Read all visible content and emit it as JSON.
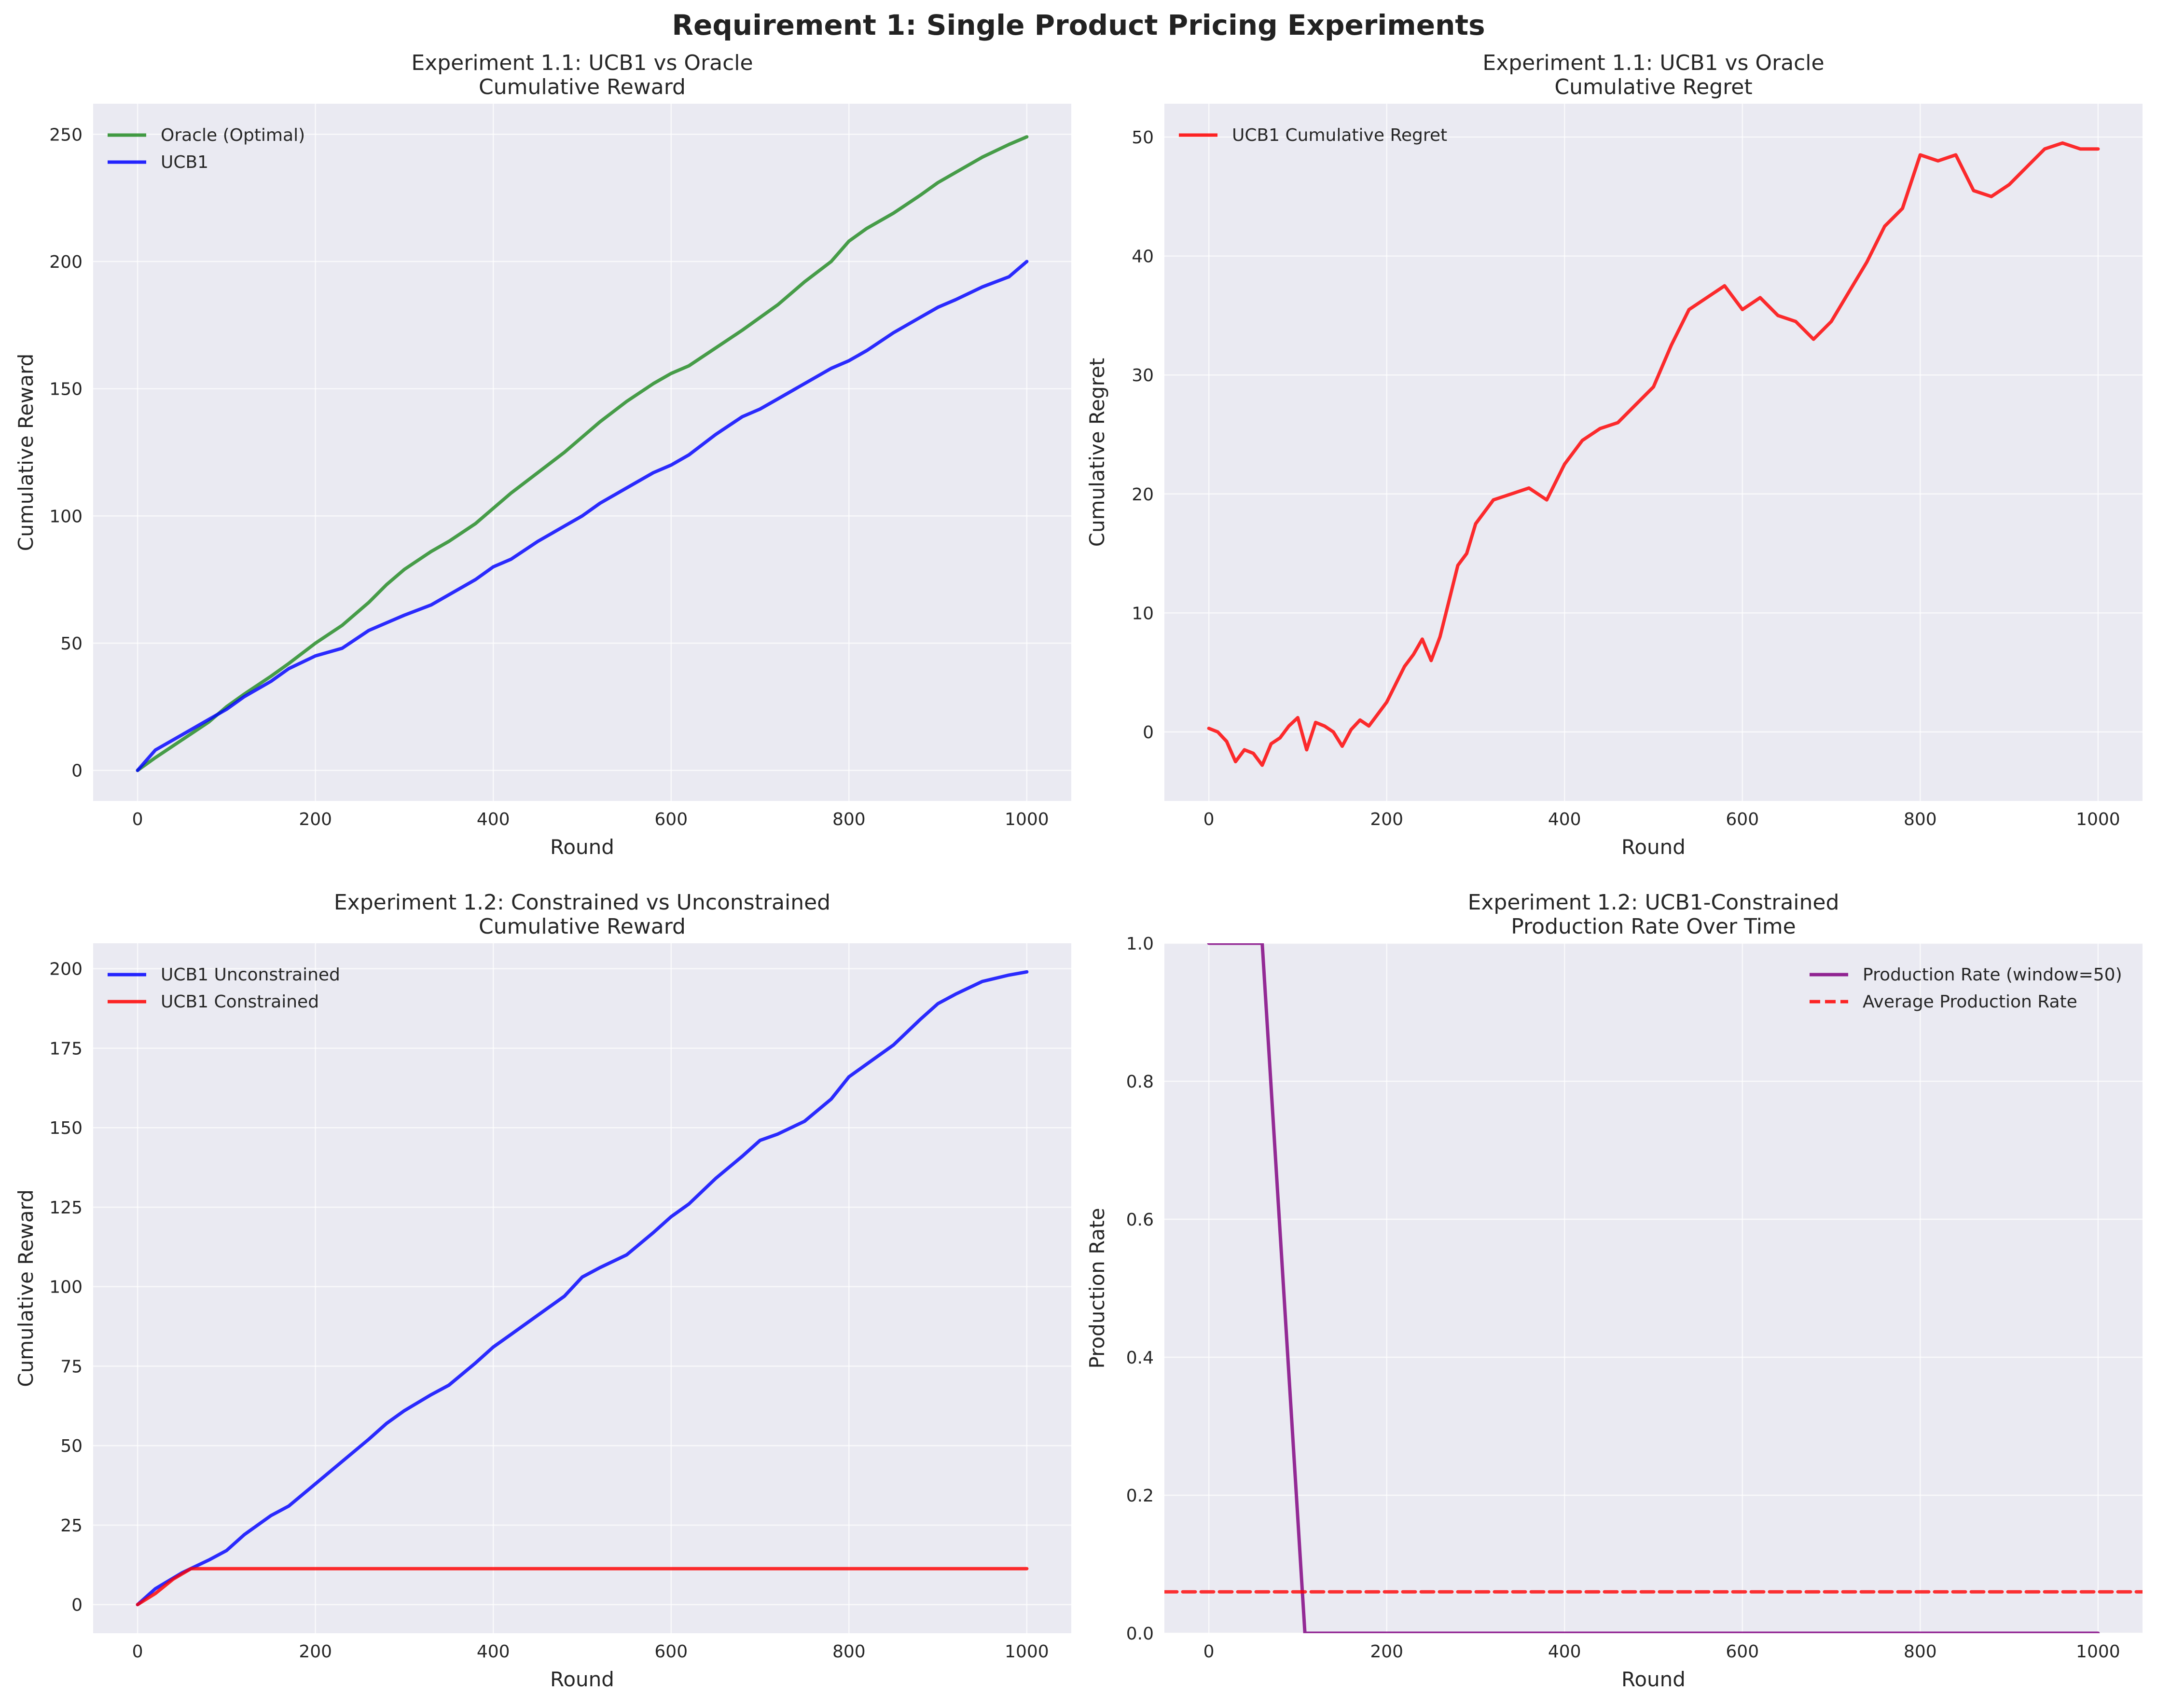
{
  "figure": {
    "suptitle": "Requirement 1: Single Product Pricing Experiments"
  },
  "chart_data": [
    {
      "id": "p1",
      "type": "line",
      "title": "Experiment 1.1: UCB1 vs Oracle",
      "subtitle": "Cumulative Reward",
      "xlabel": "Round",
      "ylabel": "Cumulative Reward",
      "xlim": [
        -50,
        1050
      ],
      "ylim": [
        -12,
        262
      ],
      "xticks": [
        0,
        200,
        400,
        600,
        800,
        1000
      ],
      "yticks": [
        0,
        50,
        100,
        150,
        200,
        250
      ],
      "grid": true,
      "legend": "top-left",
      "series": [
        {
          "name": "Oracle (Optimal)",
          "color": "#228B22",
          "dash": "solid",
          "x": [
            0,
            20,
            50,
            80,
            100,
            120,
            150,
            170,
            200,
            230,
            260,
            280,
            300,
            330,
            350,
            380,
            400,
            420,
            450,
            480,
            500,
            520,
            550,
            580,
            600,
            620,
            650,
            680,
            700,
            720,
            750,
            780,
            800,
            820,
            850,
            880,
            900,
            920,
            950,
            980,
            1000
          ],
          "y": [
            0,
            5,
            12,
            19,
            25,
            30,
            37,
            42,
            50,
            57,
            66,
            73,
            79,
            86,
            90,
            97,
            103,
            109,
            117,
            125,
            131,
            137,
            145,
            152,
            156,
            159,
            166,
            173,
            178,
            183,
            192,
            200,
            208,
            213,
            219,
            226,
            231,
            235,
            241,
            246,
            249
          ]
        },
        {
          "name": "UCB1",
          "color": "#0000FF",
          "dash": "solid",
          "x": [
            0,
            20,
            50,
            80,
            100,
            120,
            150,
            170,
            200,
            230,
            260,
            280,
            300,
            330,
            350,
            380,
            400,
            420,
            450,
            480,
            500,
            520,
            550,
            580,
            600,
            620,
            650,
            680,
            700,
            720,
            750,
            780,
            800,
            820,
            850,
            880,
            900,
            920,
            950,
            980,
            1000
          ],
          "y": [
            0,
            8,
            14,
            20,
            24,
            29,
            35,
            40,
            45,
            48,
            55,
            58,
            61,
            65,
            69,
            75,
            80,
            83,
            90,
            96,
            100,
            105,
            111,
            117,
            120,
            124,
            132,
            139,
            142,
            146,
            152,
            158,
            161,
            165,
            172,
            178,
            182,
            185,
            190,
            194,
            200
          ]
        }
      ]
    },
    {
      "id": "p2",
      "type": "line",
      "title": "Experiment 1.1: UCB1 vs Oracle",
      "subtitle": "Cumulative Regret",
      "xlabel": "Round",
      "ylabel": "Cumulative Regret",
      "xlim": [
        -50,
        1050
      ],
      "ylim": [
        -5.8,
        52.8
      ],
      "xticks": [
        0,
        200,
        400,
        600,
        800,
        1000
      ],
      "yticks": [
        0,
        10,
        20,
        30,
        40,
        50
      ],
      "grid": true,
      "legend": "top-left",
      "series": [
        {
          "name": "UCB1 Cumulative Regret",
          "color": "#FF0000",
          "dash": "solid",
          "x": [
            0,
            10,
            20,
            30,
            40,
            50,
            60,
            70,
            80,
            90,
            100,
            110,
            120,
            130,
            140,
            150,
            160,
            170,
            180,
            190,
            200,
            210,
            220,
            230,
            240,
            250,
            260,
            270,
            280,
            290,
            300,
            320,
            340,
            360,
            380,
            400,
            420,
            440,
            460,
            480,
            500,
            520,
            540,
            560,
            580,
            600,
            620,
            640,
            660,
            680,
            700,
            720,
            740,
            760,
            780,
            800,
            820,
            840,
            860,
            880,
            900,
            920,
            940,
            960,
            980,
            1000
          ],
          "y": [
            0.3,
            0.0,
            -0.8,
            -2.5,
            -1.5,
            -1.8,
            -2.8,
            -1.0,
            -0.5,
            0.5,
            1.2,
            -1.5,
            0.8,
            0.5,
            0.0,
            -1.2,
            0.2,
            1.0,
            0.5,
            1.5,
            2.5,
            4.0,
            5.5,
            6.5,
            7.8,
            6.0,
            8.0,
            11.0,
            14.0,
            15.0,
            17.5,
            19.5,
            20.0,
            20.5,
            19.5,
            22.5,
            24.5,
            25.5,
            26.0,
            27.5,
            29.0,
            32.5,
            35.5,
            36.5,
            37.5,
            35.5,
            36.5,
            35.0,
            34.5,
            33.0,
            34.5,
            37.0,
            39.5,
            42.5,
            44.0,
            48.5,
            48.0,
            48.5,
            45.5,
            45.0,
            46.0,
            47.5,
            49.0,
            49.5,
            49.0,
            49.0
          ]
        }
      ]
    },
    {
      "id": "p3",
      "type": "line",
      "title": "Experiment 1.2: Constrained vs Unconstrained",
      "subtitle": "Cumulative Reward",
      "xlabel": "Round",
      "ylabel": "Cumulative Reward",
      "xlim": [
        -50,
        1050
      ],
      "ylim": [
        -9,
        208
      ],
      "xticks": [
        0,
        200,
        400,
        600,
        800,
        1000
      ],
      "yticks": [
        0,
        25,
        50,
        75,
        100,
        125,
        150,
        175,
        200
      ],
      "grid": true,
      "legend": "top-left",
      "series": [
        {
          "name": "UCB1 Unconstrained",
          "color": "#0000FF",
          "dash": "solid",
          "x": [
            0,
            20,
            50,
            80,
            100,
            120,
            150,
            170,
            200,
            230,
            260,
            280,
            300,
            330,
            350,
            380,
            400,
            420,
            450,
            480,
            500,
            520,
            550,
            580,
            600,
            620,
            650,
            680,
            700,
            720,
            750,
            780,
            800,
            820,
            850,
            880,
            900,
            920,
            950,
            980,
            1000
          ],
          "y": [
            0,
            5,
            10,
            14,
            17,
            22,
            28,
            31,
            38,
            45,
            52,
            57,
            61,
            66,
            69,
            76,
            81,
            85,
            91,
            97,
            103,
            106,
            110,
            117,
            122,
            126,
            134,
            141,
            146,
            148,
            152,
            159,
            166,
            170,
            176,
            184,
            189,
            192,
            196,
            198,
            199
          ]
        },
        {
          "name": "UCB1 Constrained",
          "color": "#FF0000",
          "dash": "solid",
          "x": [
            0,
            20,
            40,
            60,
            1000
          ],
          "y": [
            0,
            3.5,
            8,
            11.3,
            11.3
          ]
        }
      ]
    },
    {
      "id": "p4",
      "type": "line",
      "title": "Experiment 1.2: UCB1-Constrained",
      "subtitle": "Production Rate Over Time",
      "xlabel": "Round",
      "ylabel": "Production Rate",
      "xlim": [
        -50,
        1050
      ],
      "ylim": [
        0,
        1.0
      ],
      "xticks": [
        0,
        200,
        400,
        600,
        800,
        1000
      ],
      "yticks": [
        0.0,
        0.2,
        0.4,
        0.6,
        0.8,
        1.0
      ],
      "grid": true,
      "legend": "top-right",
      "series": [
        {
          "name": "Production Rate (window=50)",
          "color": "#800080",
          "dash": "solid",
          "x": [
            0,
            60,
            108,
            1000
          ],
          "y": [
            1.0,
            1.0,
            0.0,
            0.0
          ]
        },
        {
          "name": "Average Production Rate",
          "color": "#FF0000",
          "dash": "dashed",
          "x": [
            -50,
            1050
          ],
          "y": [
            0.06,
            0.06
          ]
        }
      ]
    }
  ]
}
